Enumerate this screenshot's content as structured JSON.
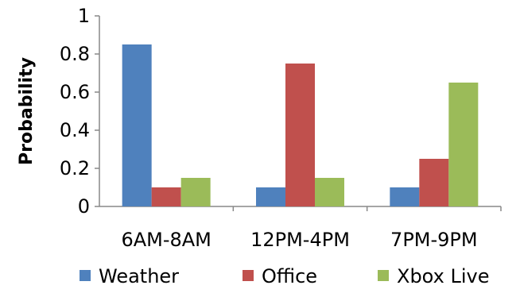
{
  "chart_data": {
    "type": "bar",
    "title": "",
    "xlabel": "",
    "ylabel": "Probability",
    "ylim": [
      0,
      1
    ],
    "yticks": [
      "0",
      "0.2",
      "0.4",
      "0.6",
      "0.8",
      "1"
    ],
    "grid": false,
    "legend_position": "bottom",
    "categories": [
      "6AM-8AM",
      "12PM-4PM",
      "7PM-9PM"
    ],
    "series": [
      {
        "name": "Weather",
        "color": "#4F81BD",
        "values": [
          0.85,
          0.1,
          0.1
        ]
      },
      {
        "name": "Office",
        "color": "#C0504D",
        "values": [
          0.1,
          0.75,
          0.25
        ]
      },
      {
        "name": "Xbox Live",
        "color": "#9BBB59",
        "values": [
          0.15,
          0.15,
          0.65
        ]
      }
    ]
  }
}
